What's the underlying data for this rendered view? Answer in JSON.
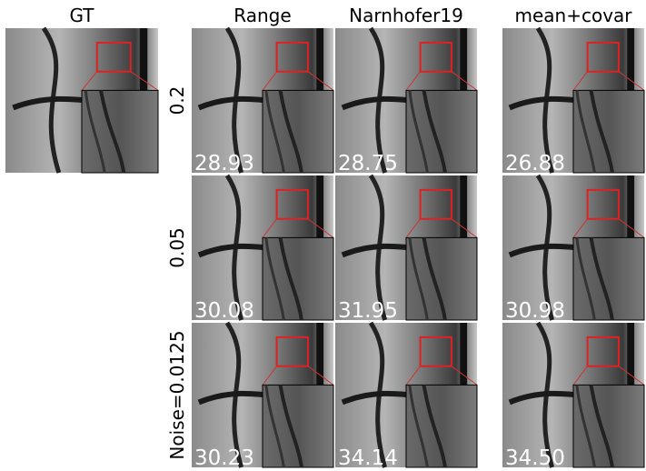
{
  "columns": [
    "GT",
    "Range",
    "Narnhofer19",
    "mean+covar"
  ],
  "rows": [
    {
      "label": "0.2",
      "psnr": [
        "28.93",
        "28.75",
        "26.88"
      ]
    },
    {
      "label": "0.05",
      "psnr": [
        "30.08",
        "31.95",
        "30.98"
      ]
    },
    {
      "label": "Noise=0.0125",
      "psnr": [
        "30.23",
        "34.14",
        "34.50"
      ]
    }
  ]
}
